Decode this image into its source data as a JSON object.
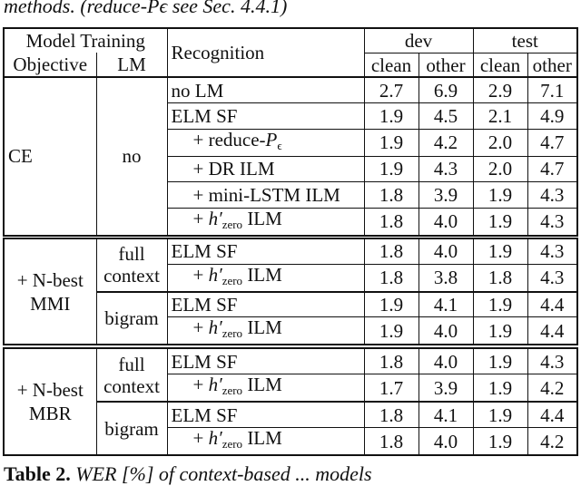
{
  "caption_top": "methods. (reduce-Pϵ see Sec. 4.4.1)",
  "caption_bottom": {
    "label": "Table 2.",
    "text": "WER [%] of context-based ... models"
  },
  "header": {
    "model_training": "Model Training",
    "objective": "Objective",
    "lm": "LM",
    "recognition": "Recognition",
    "dev": "dev",
    "test": "test",
    "clean": "clean",
    "other": "other"
  },
  "blocks": [
    {
      "objective": "CE",
      "groups": [
        {
          "lm": "no",
          "rows": [
            {
              "recognition": "no LM",
              "values": [
                "2.7",
                "6.9",
                "2.9",
                "7.1"
              ]
            },
            {
              "recognition": "ELM SF",
              "values": [
                "1.9",
                "4.5",
                "2.1",
                "4.9"
              ]
            },
            {
              "recognition": "+ reduce-Pϵ",
              "values": [
                "1.9",
                "4.2",
                "2.0",
                "4.7"
              ]
            },
            {
              "recognition": "+ DR ILM",
              "values": [
                "1.9",
                "4.3",
                "2.0",
                "4.7"
              ]
            },
            {
              "recognition": "+ mini-LSTM ILM",
              "values": [
                "1.8",
                "3.9",
                "1.9",
                "4.3"
              ]
            },
            {
              "recognition": "+ h′zero ILM",
              "values": [
                "1.8",
                "4.0",
                "1.9",
                "4.3"
              ]
            }
          ]
        }
      ]
    },
    {
      "objective": "+ N-best MMI",
      "groups": [
        {
          "lm": "full context",
          "rows": [
            {
              "recognition": "ELM SF",
              "values": [
                "1.8",
                "4.0",
                "1.9",
                "4.3"
              ]
            },
            {
              "recognition": "+ h′zero ILM",
              "values": [
                "1.8",
                "3.8",
                "1.8",
                "4.3"
              ]
            }
          ]
        },
        {
          "lm": "bigram",
          "rows": [
            {
              "recognition": "ELM SF",
              "values": [
                "1.9",
                "4.1",
                "1.9",
                "4.4"
              ]
            },
            {
              "recognition": "+ h′zero ILM",
              "values": [
                "1.9",
                "4.0",
                "1.9",
                "4.4"
              ]
            }
          ]
        }
      ]
    },
    {
      "objective": "+ N-best MBR",
      "groups": [
        {
          "lm": "full context",
          "rows": [
            {
              "recognition": "ELM SF",
              "values": [
                "1.8",
                "4.0",
                "1.9",
                "4.3"
              ]
            },
            {
              "recognition": "+ h′zero ILM",
              "values": [
                "1.7",
                "3.9",
                "1.9",
                "4.2"
              ]
            }
          ]
        },
        {
          "lm": "bigram",
          "rows": [
            {
              "recognition": "ELM SF",
              "values": [
                "1.8",
                "4.1",
                "1.9",
                "4.4"
              ]
            },
            {
              "recognition": "+ h′zero ILM",
              "values": [
                "1.8",
                "4.0",
                "1.9",
                "4.2"
              ]
            }
          ]
        }
      ]
    }
  ]
}
